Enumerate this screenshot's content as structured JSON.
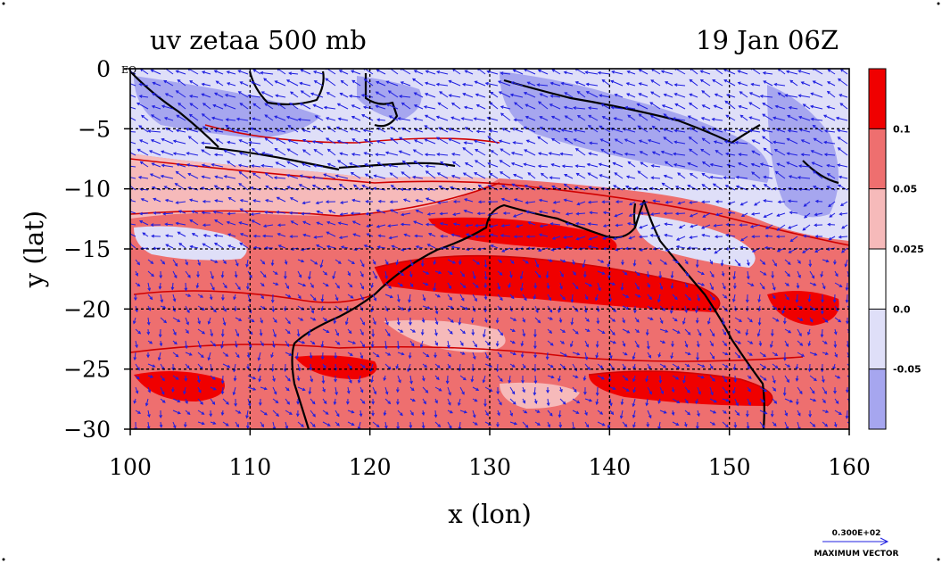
{
  "chart_data": {
    "type": "heatmap",
    "title_left": "uv zetaa 500 mb",
    "title_right": "19 Jan 06Z",
    "xlabel": "x (lon)",
    "ylabel": "y (lat)",
    "xlim": [
      100,
      160
    ],
    "ylim": [
      -30,
      0
    ],
    "x_ticks": [
      100,
      110,
      120,
      130,
      140,
      150,
      160
    ],
    "x_tick_labels": [
      "100",
      "110",
      "120",
      "130",
      "140",
      "150",
      "160"
    ],
    "y_ticks": [
      0,
      -5,
      -10,
      -15,
      -20,
      -25,
      -30
    ],
    "y_tick_labels": [
      "0",
      "−5",
      "−10",
      "−15",
      "−20",
      "−25",
      "−30"
    ],
    "grid": true,
    "equator_label": "EQ",
    "colorbar": {
      "levels": [
        "0.1",
        "0.05",
        "0.025",
        "0.0",
        "-0.05"
      ],
      "colors": [
        "#f00000",
        "#ee6f6f",
        "#f6baba",
        "#ffffff",
        "#dfdff8",
        "#a6a6ef"
      ]
    },
    "vector_key": {
      "value": "0.300E+02",
      "label": "MAXIMUM VECTOR"
    },
    "field_colors": {
      "strong_pos": "#f00000",
      "mod_pos": "#ee6f6f",
      "weak_pos": "#f6baba",
      "weak_neg": "#dfdff8",
      "mod_neg": "#a6a6ef",
      "contour": "#d00000",
      "vector": "#1f1fe0",
      "coast": "#000000"
    }
  }
}
